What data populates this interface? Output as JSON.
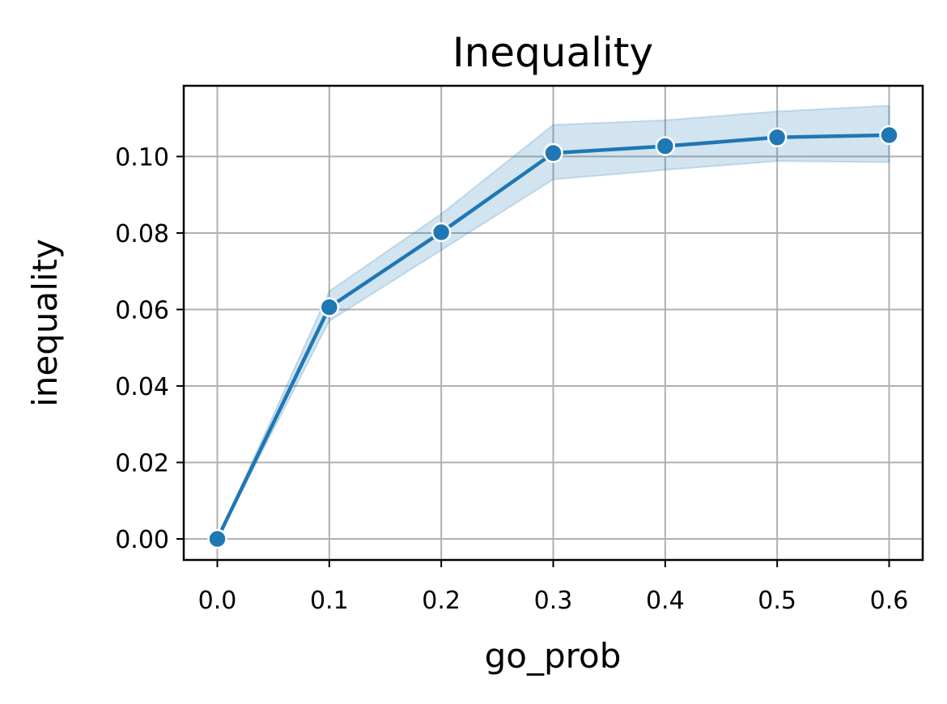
{
  "chart_data": {
    "type": "line",
    "title": "Inequality",
    "xlabel": "go_prob",
    "ylabel": "inequality",
    "xlim": [
      -0.03,
      0.63
    ],
    "ylim": [
      -0.0055,
      0.1185
    ],
    "xticks": [
      0.0,
      0.1,
      0.2,
      0.3,
      0.4,
      0.5,
      0.6
    ],
    "xtick_labels": [
      "0.0",
      "0.1",
      "0.2",
      "0.3",
      "0.4",
      "0.5",
      "0.6"
    ],
    "yticks": [
      0.0,
      0.02,
      0.04,
      0.06,
      0.08,
      0.1
    ],
    "ytick_labels": [
      "0.00",
      "0.02",
      "0.04",
      "0.06",
      "0.08",
      "0.10"
    ],
    "grid": true,
    "series": [
      {
        "x": [
          0.0,
          0.1,
          0.2,
          0.3,
          0.4,
          0.5,
          0.6
        ],
        "y": [
          0.0,
          0.0606,
          0.0802,
          0.1009,
          0.1027,
          0.105,
          0.1056
        ],
        "ci_lower": [
          0.0,
          0.057,
          0.0755,
          0.094,
          0.0965,
          0.0988,
          0.0985
        ],
        "ci_upper": [
          0.0,
          0.0648,
          0.085,
          0.1083,
          0.1095,
          0.1118,
          0.1133
        ],
        "color": "#1f77b4",
        "band_color": "#1f77b4",
        "marker": "circle"
      }
    ]
  }
}
